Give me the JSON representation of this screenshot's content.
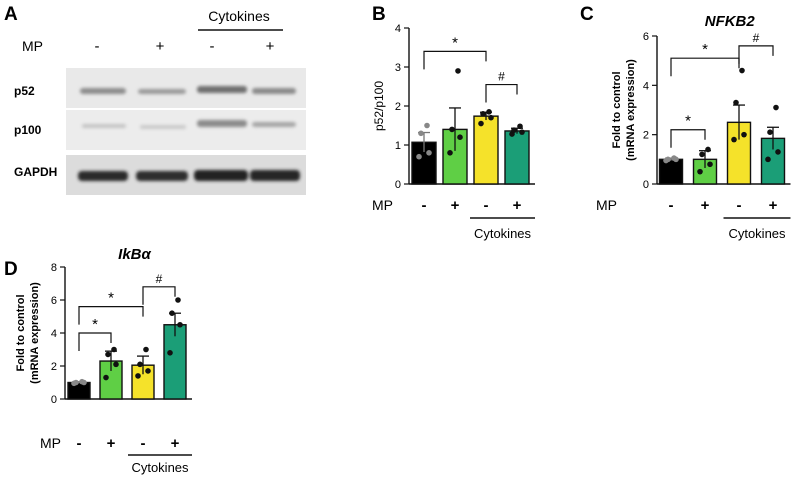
{
  "panel_letters": [
    "A",
    "B",
    "C",
    "D"
  ],
  "blot": {
    "header": "Cytokines",
    "mp_label": "MP",
    "mp_signs": [
      "-",
      "+",
      "-",
      "+"
    ],
    "rows": [
      "p52",
      "p100",
      "GAPDH"
    ]
  },
  "chart_data": [
    {
      "type": "bar",
      "panel": "B",
      "title": "",
      "ylabel": "p52/p100",
      "ylim": [
        0,
        4
      ],
      "yticks": [
        0,
        1,
        2,
        3,
        4
      ],
      "categories": [
        "-",
        "+",
        "-",
        "+"
      ],
      "row_label": "MP",
      "group_label": "Cytokines",
      "values": [
        1.07,
        1.4,
        1.74,
        1.36
      ],
      "errors": [
        0.25,
        0.55,
        0.1,
        0.07
      ],
      "colors": [
        "#000000",
        "#5fcf45",
        "#f5e22a",
        "#1b9e77"
      ],
      "points": [
        [
          0.7,
          0.8,
          1.3,
          1.5
        ],
        [
          0.8,
          1.2,
          1.4,
          2.9
        ],
        [
          1.55,
          1.7,
          1.8,
          1.85
        ],
        [
          1.28,
          1.33,
          1.38,
          1.48
        ]
      ],
      "significance": [
        {
          "from": 0,
          "to": 2,
          "label": "*",
          "y": 3.4
        },
        {
          "from": 2,
          "to": 3,
          "label": "#",
          "y": 2.55
        }
      ]
    },
    {
      "type": "bar",
      "panel": "C",
      "title": "NFKB2",
      "ylabel": "Fold to control\n(mRNA expression)",
      "ylim": [
        0,
        6
      ],
      "yticks": [
        0,
        2,
        4,
        6
      ],
      "categories": [
        "-",
        "+",
        "-",
        "+"
      ],
      "row_label": "MP",
      "group_label": "Cytokines",
      "values": [
        1.0,
        1.0,
        2.5,
        1.85
      ],
      "errors": [
        0.05,
        0.35,
        0.7,
        0.45
      ],
      "colors": [
        "#000000",
        "#5fcf45",
        "#f5e22a",
        "#1b9e77"
      ],
      "points": [
        [
          0.95,
          1.0,
          1.0,
          1.05
        ],
        [
          0.5,
          0.8,
          1.2,
          1.4
        ],
        [
          1.8,
          2.0,
          3.3,
          4.6
        ],
        [
          1.0,
          1.3,
          2.1,
          3.1
        ]
      ],
      "significance": [
        {
          "from": 0,
          "to": 1,
          "label": "*",
          "y": 2.2
        },
        {
          "from": 0,
          "to": 2,
          "label": "*",
          "y": 5.1
        },
        {
          "from": 2,
          "to": 3,
          "label": "#",
          "y": 5.6
        }
      ]
    },
    {
      "type": "bar",
      "panel": "D",
      "title": "IkBα",
      "ylabel": "Fold to control\n(mRNA expression)",
      "ylim": [
        0,
        8
      ],
      "yticks": [
        0,
        2,
        4,
        6,
        8
      ],
      "categories": [
        "-",
        "+",
        "-",
        "+"
      ],
      "row_label": "MP",
      "group_label": "Cytokines",
      "values": [
        1.0,
        2.3,
        2.05,
        4.5
      ],
      "errors": [
        0.05,
        0.6,
        0.55,
        0.7
      ],
      "colors": [
        "#000000",
        "#5fcf45",
        "#f5e22a",
        "#1b9e77"
      ],
      "points": [
        [
          0.95,
          1.0,
          1.0,
          1.05
        ],
        [
          1.3,
          2.1,
          2.7,
          3.0
        ],
        [
          1.4,
          1.7,
          2.1,
          3.0
        ],
        [
          2.8,
          4.5,
          5.2,
          6.0
        ]
      ],
      "significance": [
        {
          "from": 0,
          "to": 1,
          "label": "*",
          "y": 4.0
        },
        {
          "from": 0,
          "to": 2,
          "label": "*",
          "y": 5.6
        },
        {
          "from": 2,
          "to": 3,
          "label": "#",
          "y": 6.8
        }
      ]
    }
  ]
}
